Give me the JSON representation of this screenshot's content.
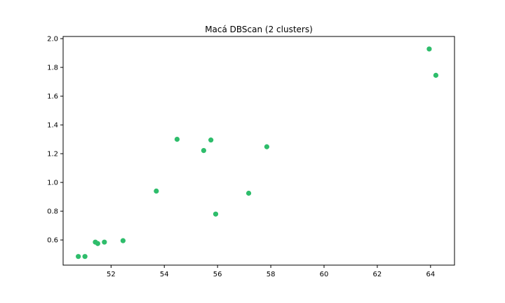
{
  "chart_data": {
    "type": "scatter",
    "title": "Macá DBScan (2 clusters)",
    "xlabel": "",
    "ylabel": "",
    "xlim": [
      50.2,
      64.9
    ],
    "ylim": [
      0.425,
      2.015
    ],
    "xticks": [
      52,
      54,
      56,
      58,
      60,
      62,
      64
    ],
    "yticks": [
      0.6,
      0.8,
      1.0,
      1.2,
      1.4,
      1.6,
      1.8,
      2.0
    ],
    "grid": false,
    "marker_color": "#2ebd6b",
    "points": [
      {
        "x": 50.77,
        "y": 0.485
      },
      {
        "x": 51.02,
        "y": 0.485
      },
      {
        "x": 51.41,
        "y": 0.585
      },
      {
        "x": 51.5,
        "y": 0.575
      },
      {
        "x": 51.75,
        "y": 0.585
      },
      {
        "x": 52.45,
        "y": 0.595
      },
      {
        "x": 53.7,
        "y": 0.94
      },
      {
        "x": 54.48,
        "y": 1.3
      },
      {
        "x": 55.48,
        "y": 1.222
      },
      {
        "x": 55.75,
        "y": 1.295
      },
      {
        "x": 55.93,
        "y": 0.78
      },
      {
        "x": 57.17,
        "y": 0.925
      },
      {
        "x": 57.85,
        "y": 1.248
      },
      {
        "x": 63.95,
        "y": 1.928
      },
      {
        "x": 64.2,
        "y": 1.745
      }
    ]
  }
}
